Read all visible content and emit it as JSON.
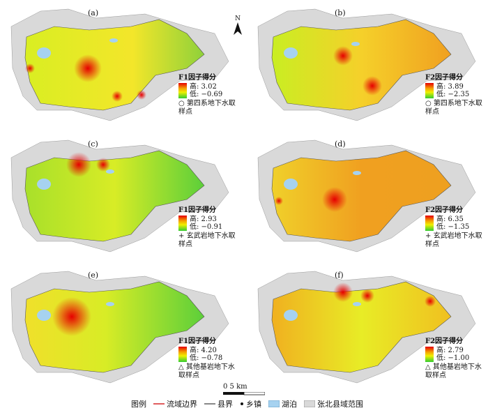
{
  "north_label": "N",
  "scale_label": "0 5 km",
  "panels": [
    {
      "id": "a",
      "label": "(a)",
      "title": "F1因子得分",
      "high": "高: 3.02",
      "low": "低: −0.69",
      "sym": "○",
      "point_label": "第四系地下水取样点"
    },
    {
      "id": "b",
      "label": "(b)",
      "title": "F2因子得分",
      "high": "高: 3.89",
      "low": "低: −2.35",
      "sym": "○",
      "point_label": "第四系地下水取样点"
    },
    {
      "id": "c",
      "label": "(c)",
      "title": "F1因子得分",
      "high": "高: 2.93",
      "low": "低: −0.91",
      "sym": "+",
      "point_label": "玄武岩地下水取样点"
    },
    {
      "id": "d",
      "label": "(d)",
      "title": "F2因子得分",
      "high": "高: 6.35",
      "low": "低: −1.35",
      "sym": "+",
      "point_label": "玄武岩地下水取样点"
    },
    {
      "id": "e",
      "label": "(e)",
      "title": "F1因子得分",
      "high": "高: 4.20",
      "low": "低: −0.78",
      "sym": "△",
      "point_label": "其他基岩地下水取样点"
    },
    {
      "id": "f",
      "label": "(f)",
      "title": "F2因子得分",
      "high": "高: 2.79",
      "low": "低: −1.00",
      "sym": "△",
      "point_label": "其他基岩地下水取样点"
    }
  ],
  "legend": {
    "title": "图例",
    "basin": "流域边界",
    "county": "县界",
    "town": "乡镇",
    "lake": "湖泊",
    "extent": "张北县域范围"
  },
  "colors": {
    "high": "#e60000",
    "mid": "#f0f000",
    "low": "#33cc33",
    "lake": "#a6d2f0",
    "extent": "#d9d9d9",
    "basin": "#d62728"
  }
}
